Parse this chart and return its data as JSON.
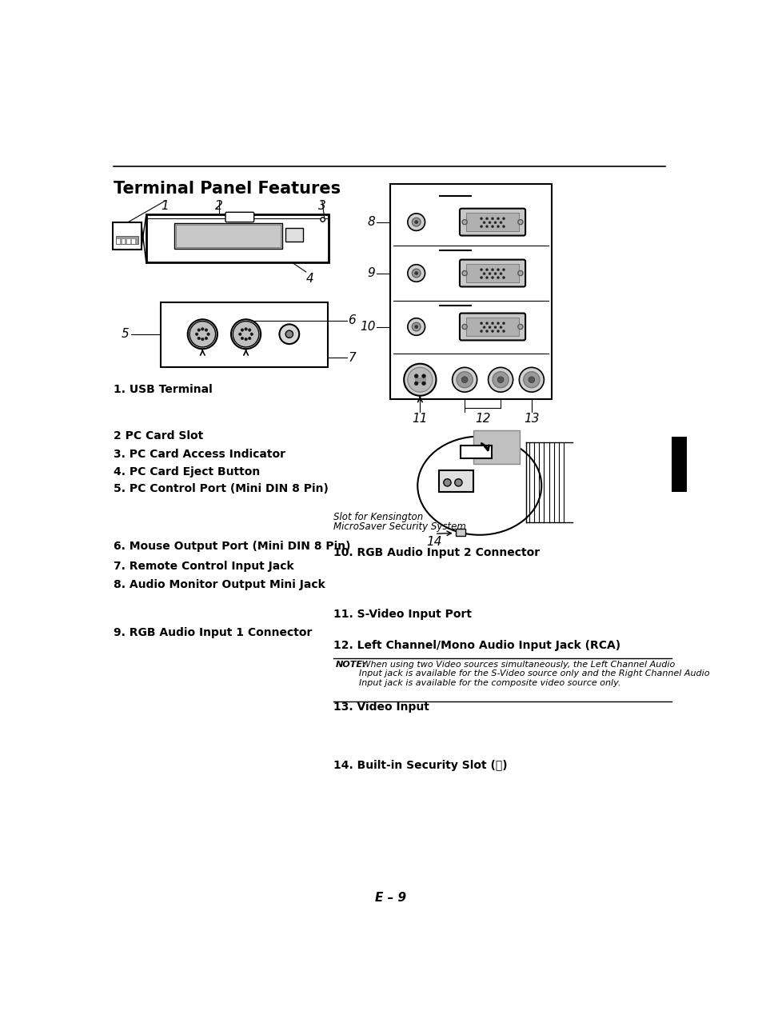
{
  "title": "Terminal Panel Features",
  "page_number": "E – 9",
  "bg_color": "#ffffff",
  "text_color": "#000000",
  "note_bold": "NOTE:",
  "note_rest": " When using two Video sources simultaneously, the Left Channel Audio\nInput jack is available for the S-Video source only and the Right Channel Audio\nInput jack is available for the composite video source only.",
  "slot_label_line1": "Slot for Kensington",
  "slot_label_line2": "MicroSaver Security System",
  "left_items": [
    [
      425,
      "1. USB Terminal"
    ],
    [
      500,
      "2 PC Card Slot"
    ],
    [
      530,
      "3. PC Card Access Indicator"
    ],
    [
      558,
      "4. PC Card Eject Button"
    ],
    [
      586,
      "5. PC Control Port (Mini DIN 8 Pin)"
    ],
    [
      680,
      "6. Mouse Output Port (Mini DIN 8 Pin)"
    ],
    [
      712,
      "7. Remote Control Input Jack"
    ],
    [
      742,
      "8. Audio Monitor Output Mini Jack"
    ],
    [
      820,
      "9. RGB Audio Input 1 Connector"
    ]
  ],
  "right_items": [
    [
      690,
      "10. RGB Audio Input 2 Connector"
    ],
    [
      790,
      "11. S-Video Input Port"
    ],
    [
      840,
      "12. Left Channel/Mono Audio Input Jack (RCA)"
    ],
    [
      940,
      "13. Video Input"
    ],
    [
      1035,
      "14. Built-in Security Slot (⓭)"
    ]
  ]
}
